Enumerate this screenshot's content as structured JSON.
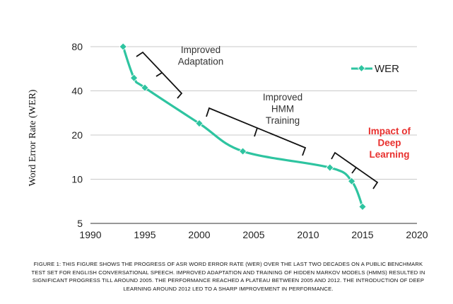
{
  "chart_data": {
    "type": "line",
    "ylabel": "Word Error Rate (WER)",
    "xlabel": "",
    "x_ticks": [
      1990,
      1995,
      2000,
      2005,
      2010,
      2015,
      2020
    ],
    "y_ticks": [
      5,
      10,
      20,
      40,
      80
    ],
    "x_range": [
      1990,
      2020
    ],
    "y_range": [
      5,
      80
    ],
    "y_scale": "log2",
    "grid": "horizontal",
    "legend_position": "top-right",
    "series": [
      {
        "name": "WER",
        "color": "#2ec4a0",
        "x": [
          1993,
          1994,
          1995,
          2000,
          2004,
          2012,
          2014,
          2015
        ],
        "y": [
          80,
          49,
          42,
          24,
          15.5,
          12,
          9.7,
          6.5
        ]
      }
    ],
    "annotations": [
      {
        "lines": [
          "Improved",
          "Adaptation"
        ],
        "color": "#333333"
      },
      {
        "lines": [
          "Improved",
          "HMM",
          "Training"
        ],
        "color": "#333333"
      },
      {
        "lines": [
          "Impact of",
          "Deep",
          "Learning"
        ],
        "color": "#e8302e"
      }
    ]
  },
  "caption": "FIGURE 1: THIS FIGURE SHOWS THE PROGRESS OF ASR WORD ERROR RATE (WER) OVER THE LAST TWO DECADES ON A PUBLIC BENCHMARK TEST SET FOR ENGLISH CONVERSATIONAL SPEECH. IMPROVED ADAPTATION AND TRAINING OF HIDDEN MARKOV MODELS (HMMS) RESULTED IN SIGNIFICANT PROGRESS TILL AROUND 2005. THE PERFORMANCE REACHED A PLATEAU BETWEEN 2005 AND 2012. THE INTRODUCTION OF DEEP LEARNING AROUND 2012 LED TO A SHARP IMPROVEMENT IN PERFORMANCE."
}
